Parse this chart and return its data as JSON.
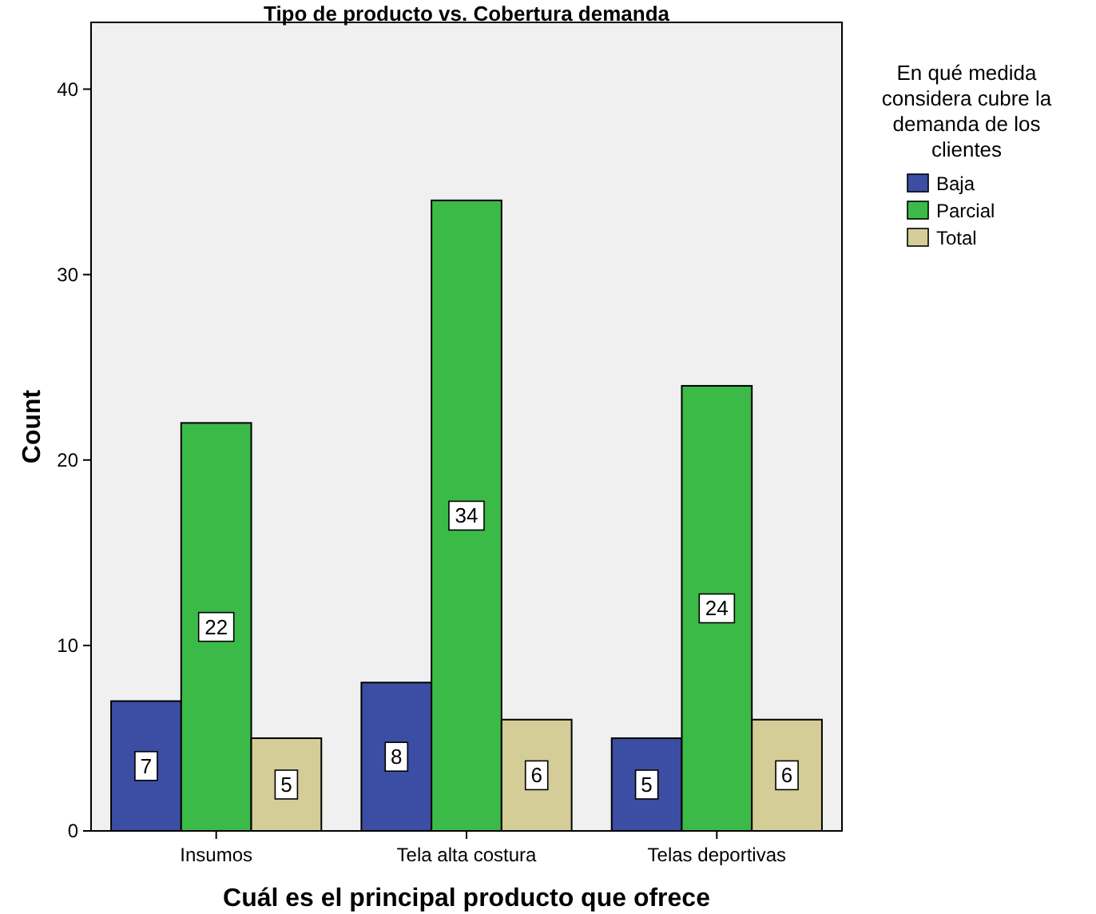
{
  "chart_data": {
    "type": "bar",
    "title": "Tipo de producto vs. Cobertura demanda",
    "xlabel": "Cuál es el principal producto que ofrece",
    "ylabel": "Count",
    "legend_title": "En qué medida considera cubre la demanda de los clientes",
    "categories": [
      "Insumos",
      "Tela alta costura",
      "Telas deportivas"
    ],
    "series": [
      {
        "name": "Baja",
        "color": "#3b4ea3",
        "values": [
          7,
          8,
          5
        ]
      },
      {
        "name": "Parcial",
        "color": "#3cba48",
        "values": [
          22,
          34,
          24
        ]
      },
      {
        "name": "Total",
        "color": "#d5cd98",
        "values": [
          5,
          6,
          6
        ]
      }
    ],
    "ylim": [
      0,
      43.6
    ],
    "yticks": [
      0,
      10,
      20,
      30,
      40
    ],
    "grid": false,
    "legend": "top right",
    "data_labels": true
  }
}
